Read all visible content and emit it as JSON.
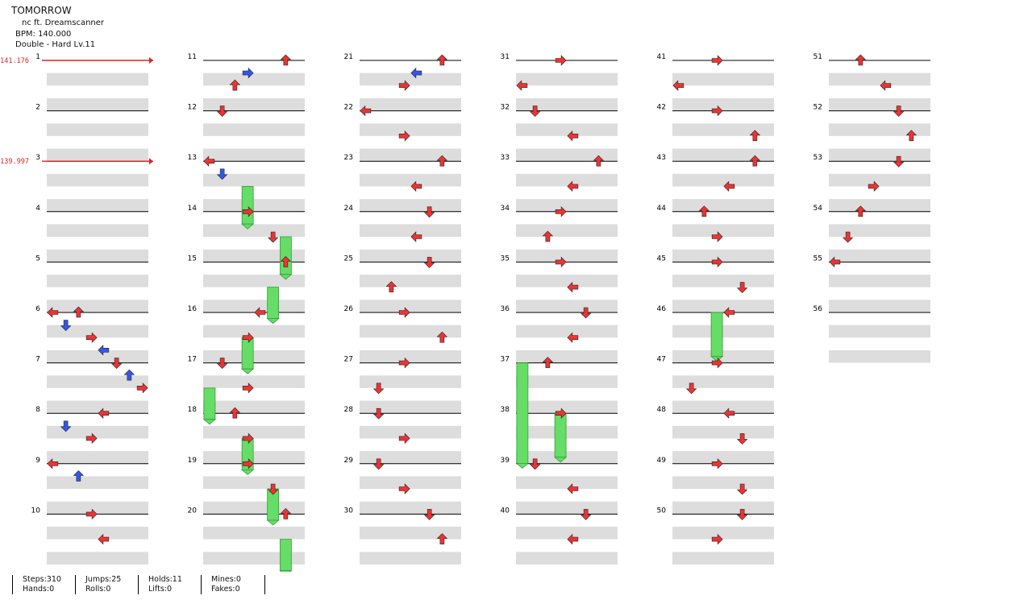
{
  "song": {
    "title": "TOMORROW",
    "artist": "nc ft. Dreamscanner",
    "bpm_label": "BPM: 140.000",
    "difficulty_label": "Double - Hard Lv.11"
  },
  "bpm_markers": [
    {
      "measure": 1,
      "label": "141.176"
    },
    {
      "measure": 3,
      "label": "139.997"
    }
  ],
  "chart_data": {
    "type": "table",
    "title": "TOMORROW",
    "total_measures": 56,
    "columns_per_measure_count": 8,
    "arrow_colors": {
      "4th": "#ee3333",
      "8th": "#3355ee",
      "16th": "#eedd22",
      "hold": "#66dd66"
    },
    "notes": [
      {
        "m": 6,
        "b": 0,
        "c": 0
      },
      {
        "m": 6,
        "b": 0,
        "c": 2
      },
      {
        "m": 6,
        "b": 2,
        "c": 1
      },
      {
        "m": 6,
        "b": 4,
        "c": 3
      },
      {
        "m": 6,
        "b": 6,
        "c": 4
      },
      {
        "m": 7,
        "b": 0,
        "c": 5
      },
      {
        "m": 7,
        "b": 2,
        "c": 6
      },
      {
        "m": 7,
        "b": 4,
        "c": 7
      },
      {
        "m": 8,
        "b": 0,
        "c": 4
      },
      {
        "m": 8,
        "b": 2,
        "c": 1
      },
      {
        "m": 8,
        "b": 4,
        "c": 3
      },
      {
        "m": 9,
        "b": 0,
        "c": 0
      },
      {
        "m": 9,
        "b": 2,
        "c": 2
      },
      {
        "m": 10,
        "b": 0,
        "c": 3
      },
      {
        "m": 10,
        "b": 4,
        "c": 4
      },
      {
        "m": 11,
        "b": 0,
        "c": 6
      },
      {
        "m": 11,
        "b": 2,
        "c": 3
      },
      {
        "m": 11,
        "b": 4,
        "c": 2
      },
      {
        "m": 12,
        "b": 0,
        "c": 1
      },
      {
        "m": 13,
        "b": 0,
        "c": 0
      },
      {
        "m": 13,
        "b": 2,
        "c": 1
      },
      {
        "m": 14,
        "b": 0,
        "c": 3
      },
      {
        "m": 14,
        "b": 4,
        "c": 5
      },
      {
        "m": 15,
        "b": 0,
        "c": 6
      },
      {
        "m": 16,
        "b": 0,
        "c": 4
      },
      {
        "m": 16,
        "b": 4,
        "c": 3
      },
      {
        "m": 17,
        "b": 0,
        "c": 1
      },
      {
        "m": 17,
        "b": 4,
        "c": 3
      },
      {
        "m": 18,
        "b": 0,
        "c": 2
      },
      {
        "m": 18,
        "b": 4,
        "c": 3
      },
      {
        "m": 19,
        "b": 0,
        "c": 3
      },
      {
        "m": 19,
        "b": 4,
        "c": 5
      },
      {
        "m": 20,
        "b": 0,
        "c": 6
      },
      {
        "m": 21,
        "b": 0,
        "c": 6
      },
      {
        "m": 21,
        "b": 2,
        "c": 4
      },
      {
        "m": 21,
        "b": 4,
        "c": 3
      },
      {
        "m": 22,
        "b": 0,
        "c": 0
      },
      {
        "m": 22,
        "b": 4,
        "c": 3
      },
      {
        "m": 23,
        "b": 0,
        "c": 6
      },
      {
        "m": 23,
        "b": 4,
        "c": 4
      },
      {
        "m": 24,
        "b": 0,
        "c": 5
      },
      {
        "m": 24,
        "b": 4,
        "c": 4
      },
      {
        "m": 25,
        "b": 0,
        "c": 5
      },
      {
        "m": 25,
        "b": 4,
        "c": 2
      },
      {
        "m": 26,
        "b": 0,
        "c": 3
      },
      {
        "m": 26,
        "b": 4,
        "c": 6
      },
      {
        "m": 27,
        "b": 0,
        "c": 3
      },
      {
        "m": 27,
        "b": 4,
        "c": 1
      },
      {
        "m": 28,
        "b": 0,
        "c": 1
      },
      {
        "m": 28,
        "b": 4,
        "c": 3
      },
      {
        "m": 29,
        "b": 0,
        "c": 1
      },
      {
        "m": 29,
        "b": 4,
        "c": 3
      },
      {
        "m": 30,
        "b": 0,
        "c": 5
      },
      {
        "m": 30,
        "b": 4,
        "c": 6
      },
      {
        "m": 31,
        "b": 0,
        "c": 3
      },
      {
        "m": 31,
        "b": 4,
        "c": 0
      },
      {
        "m": 32,
        "b": 0,
        "c": 1
      },
      {
        "m": 32,
        "b": 4,
        "c": 4
      },
      {
        "m": 33,
        "b": 0,
        "c": 6
      },
      {
        "m": 33,
        "b": 4,
        "c": 4
      },
      {
        "m": 34,
        "b": 0,
        "c": 3
      },
      {
        "m": 34,
        "b": 4,
        "c": 2
      },
      {
        "m": 35,
        "b": 0,
        "c": 3
      },
      {
        "m": 35,
        "b": 4,
        "c": 4
      },
      {
        "m": 36,
        "b": 0,
        "c": 5
      },
      {
        "m": 36,
        "b": 4,
        "c": 4
      },
      {
        "m": 37,
        "b": 0,
        "c": 2
      },
      {
        "m": 38,
        "b": 0,
        "c": 3
      },
      {
        "m": 39,
        "b": 0,
        "c": 1
      },
      {
        "m": 39,
        "b": 4,
        "c": 4
      },
      {
        "m": 40,
        "b": 0,
        "c": 5
      },
      {
        "m": 40,
        "b": 4,
        "c": 4
      },
      {
        "m": 41,
        "b": 0,
        "c": 3
      },
      {
        "m": 41,
        "b": 4,
        "c": 0
      },
      {
        "m": 42,
        "b": 0,
        "c": 3
      },
      {
        "m": 42,
        "b": 4,
        "c": 6
      },
      {
        "m": 43,
        "b": 0,
        "c": 6
      },
      {
        "m": 43,
        "b": 4,
        "c": 4
      },
      {
        "m": 44,
        "b": 0,
        "c": 2
      },
      {
        "m": 44,
        "b": 4,
        "c": 3
      },
      {
        "m": 45,
        "b": 0,
        "c": 3
      },
      {
        "m": 45,
        "b": 4,
        "c": 5
      },
      {
        "m": 46,
        "b": 0,
        "c": 4
      },
      {
        "m": 47,
        "b": 0,
        "c": 3
      },
      {
        "m": 47,
        "b": 4,
        "c": 1
      },
      {
        "m": 48,
        "b": 0,
        "c": 4
      },
      {
        "m": 48,
        "b": 4,
        "c": 5
      },
      {
        "m": 49,
        "b": 0,
        "c": 3
      },
      {
        "m": 49,
        "b": 4,
        "c": 5
      },
      {
        "m": 50,
        "b": 0,
        "c": 5
      },
      {
        "m": 50,
        "b": 4,
        "c": 3
      },
      {
        "m": 51,
        "b": 0,
        "c": 2
      },
      {
        "m": 51,
        "b": 4,
        "c": 4
      },
      {
        "m": 52,
        "b": 0,
        "c": 5
      },
      {
        "m": 52,
        "b": 4,
        "c": 6
      },
      {
        "m": 53,
        "b": 0,
        "c": 5
      },
      {
        "m": 53,
        "b": 4,
        "c": 3
      },
      {
        "m": 54,
        "b": 0,
        "c": 2
      },
      {
        "m": 54,
        "b": 4,
        "c": 1
      },
      {
        "m": 55,
        "b": 0,
        "c": 0
      }
    ],
    "holds": [
      {
        "m": 13,
        "b": 4,
        "c": 3,
        "len": 6
      },
      {
        "m": 14,
        "b": 4,
        "c": 6,
        "len": 6
      },
      {
        "m": 15,
        "b": 4,
        "c": 5,
        "len": 5
      },
      {
        "m": 16,
        "b": 4,
        "c": 3,
        "len": 5
      },
      {
        "m": 17,
        "b": 4,
        "c": 0,
        "len": 5
      },
      {
        "m": 18,
        "b": 4,
        "c": 3,
        "len": 5
      },
      {
        "m": 19,
        "b": 4,
        "c": 5,
        "len": 5
      },
      {
        "m": 20,
        "b": 4,
        "c": 6,
        "len": 5
      },
      {
        "m": 37,
        "b": 0,
        "c": 0,
        "len": 16
      },
      {
        "m": 38,
        "b": 0,
        "c": 3,
        "len": 7
      },
      {
        "m": 46,
        "b": 0,
        "c": 3,
        "len": 7
      }
    ]
  },
  "stats": {
    "steps": "Steps:310",
    "jumps": "Jumps:25",
    "holds": "Holds:11",
    "mines": "Mines:0",
    "hands": "Hands:0",
    "rolls": "Rolls:0",
    "lifts": "Lifts:0",
    "fakes": "Fakes:0"
  }
}
